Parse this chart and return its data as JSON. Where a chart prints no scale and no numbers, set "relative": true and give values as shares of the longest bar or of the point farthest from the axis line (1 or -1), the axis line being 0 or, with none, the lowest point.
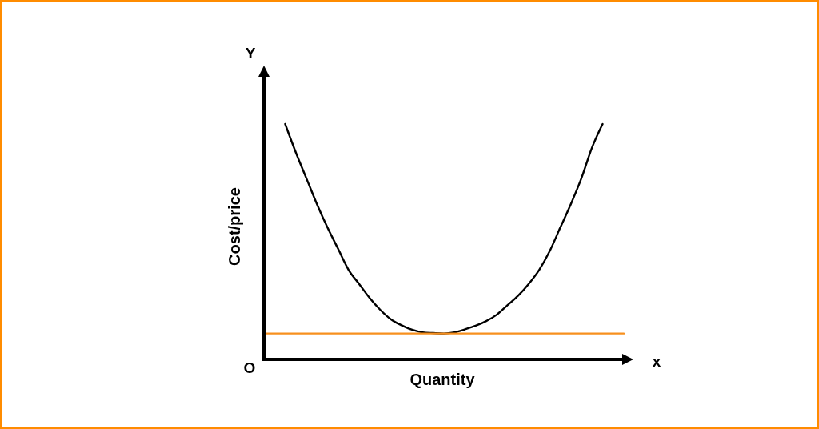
{
  "chart_data": {
    "type": "line",
    "relative": true,
    "xlabel": "Quantity",
    "ylabel": "Cost/price",
    "annotations": [
      "Y",
      "x",
      "O"
    ],
    "categories": [
      null,
      null,
      null,
      null,
      null,
      null,
      null,
      null,
      null,
      null,
      null,
      null,
      null,
      null,
      null,
      null,
      null,
      null,
      null,
      null,
      null,
      null,
      null,
      null,
      null,
      null,
      null,
      null,
      null,
      null,
      null,
      null,
      null,
      null,
      null
    ],
    "series": [
      {
        "color": "#000000",
        "values": [
          null,
          null,
          1,
          0.88,
          0.77,
          0.66,
          0.56,
          0.47,
          0.38,
          0.32,
          0.26,
          0.21,
          0.17,
          0.145,
          0.126,
          0.115,
          0.112,
          0.11,
          0.115,
          0.128,
          0.143,
          0.163,
          0.19,
          0.23,
          0.27,
          0.32,
          0.38,
          0.46,
          0.56,
          0.66,
          0.77,
          0.9,
          1,
          null,
          null
        ]
      },
      {
        "color": "#f7901e",
        "values": [
          0.11,
          0.11,
          0.11,
          0.11,
          0.11,
          0.11,
          0.11,
          0.11,
          0.11,
          0.11,
          0.11,
          0.11,
          0.11,
          0.11,
          0.11,
          0.11,
          0.11,
          0.11,
          0.11,
          0.11,
          0.11,
          0.11,
          0.11,
          0.11,
          0.11,
          0.11,
          0.11,
          0.11,
          0.11,
          0.11,
          0.11,
          0.11,
          0.11,
          0.11,
          0.11
        ]
      }
    ],
    "line_style": "solid"
  }
}
